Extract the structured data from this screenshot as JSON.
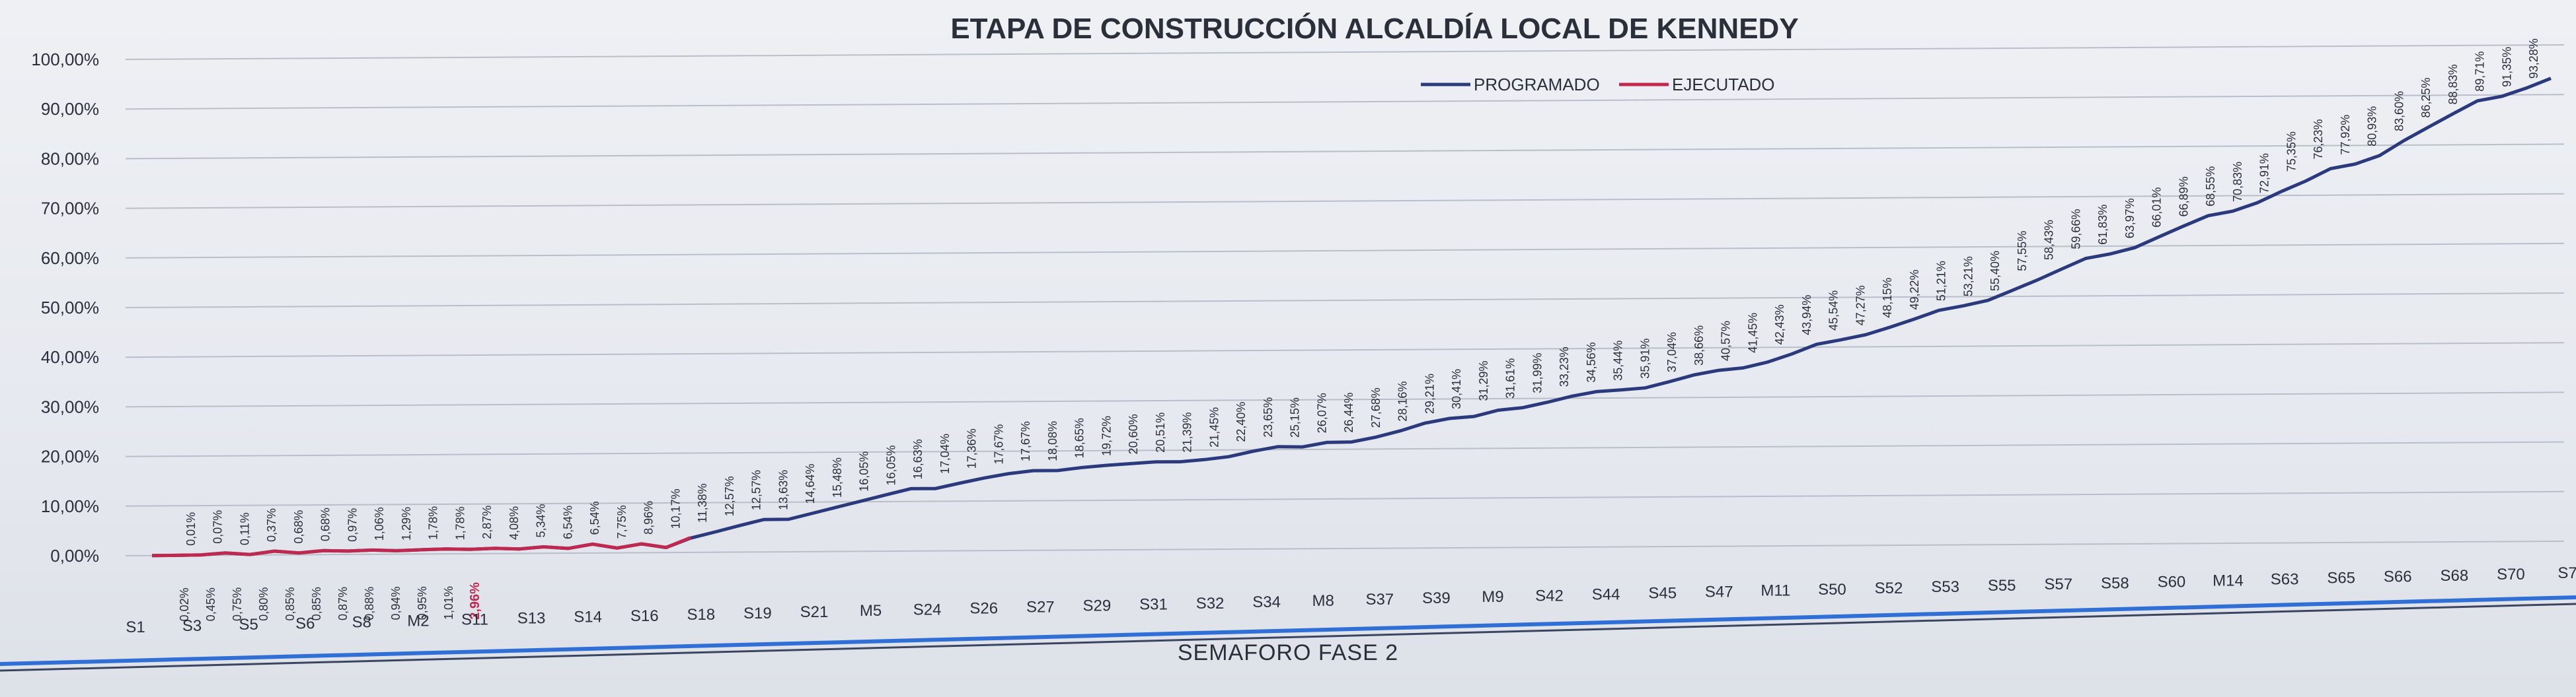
{
  "chart_data": {
    "type": "line",
    "title": "ETAPA DE CONSTRUCCIÓN ALCALDÍA LOCAL DE KENNEDY",
    "ylim": [
      0,
      100
    ],
    "y_ticks": [
      "0,00%",
      "10,00%",
      "20,00%",
      "30,00%",
      "40,00%",
      "50,00%",
      "60,00%",
      "70,00%",
      "80,00%",
      "90,00%",
      "100,00%"
    ],
    "grid": true,
    "legend_position": "top-center",
    "x_tick_labels": [
      "S1",
      "S3",
      "S5",
      "S6",
      "S8",
      "M2",
      "S11",
      "S13",
      "S14",
      "S16",
      "S18",
      "S19",
      "S21",
      "M5",
      "S24",
      "S26",
      "S27",
      "S29",
      "S31",
      "S32",
      "S34",
      "M8",
      "S37",
      "S39",
      "M9",
      "S42",
      "S44",
      "S45",
      "S47",
      "M11",
      "S50",
      "S52",
      "S53",
      "S55",
      "S57",
      "S58",
      "S60",
      "M14",
      "S63",
      "S65",
      "S66",
      "S68",
      "S70",
      "S7"
    ],
    "series": [
      {
        "name": "PROGRAMADO",
        "color": "#2a3a7c",
        "values": [
          0.01,
          0.02,
          0.07,
          0.45,
          0.11,
          0.75,
          0.37,
          0.8,
          0.68,
          0.85,
          0.68,
          0.85,
          0.97,
          0.87,
          1.06,
          0.88,
          1.29,
          0.94,
          1.78,
          0.95,
          1.78,
          1.01,
          2.87,
          4.08,
          5.34,
          6.54,
          6.54,
          7.75,
          8.96,
          10.17,
          11.38,
          12.57,
          12.57,
          13.63,
          14.64,
          15.48,
          16.05,
          16.05,
          16.63,
          17.04,
          17.36,
          17.67,
          17.67,
          18.08,
          18.65,
          19.72,
          20.6,
          20.51,
          21.39,
          21.45,
          22.4,
          23.65,
          25.15,
          26.07,
          26.44,
          27.68,
          28.16,
          29.21,
          30.41,
          31.29,
          31.61,
          31.99,
          33.23,
          34.56,
          35.44,
          35.91,
          37.04,
          38.66,
          40.57,
          41.45,
          42.43,
          43.94,
          45.54,
          47.27,
          48.15,
          49.22,
          51.21,
          53.21,
          55.4,
          57.55,
          58.43,
          59.66,
          61.83,
          63.97,
          66.01,
          66.89,
          68.55,
          70.83,
          72.91,
          75.35,
          76.23,
          77.92,
          80.93,
          83.6,
          86.25,
          88.83,
          89.71,
          91.35,
          93.28
        ]
      },
      {
        "name": "EJECUTADO",
        "color": "#c0294f",
        "values": [
          0.01,
          0.02,
          0.07,
          0.45,
          0.11,
          0.75,
          0.37,
          0.8,
          0.68,
          0.85,
          0.68,
          0.85,
          0.97,
          0.87,
          1.06,
          0.88,
          1.29,
          0.94,
          1.78,
          0.95,
          1.78,
          1.01,
          2.96
        ]
      }
    ],
    "top_labels": [
      "0,01%",
      "0,07%",
      "0,11%",
      "0,37%",
      "0,68%",
      "0,68%",
      "0,97%",
      "1,06%",
      "1,29%",
      "1,78%",
      "1,78%",
      "2,87%",
      "4,08%",
      "5,34%",
      "6,54%",
      "6,54%",
      "7,75%",
      "8,96%",
      "10,17%",
      "11,38%",
      "12,57%",
      "12,57%",
      "13,63%",
      "14,64%",
      "15,48%",
      "16,05%",
      "16,05%",
      "16,63%",
      "17,04%",
      "17,36%",
      "17,67%",
      "17,67%",
      "18,08%",
      "18,65%",
      "19,72%",
      "20,60%",
      "20,51%",
      "21,39%",
      "21,45%",
      "22,40%",
      "23,65%",
      "25,15%",
      "26,07%",
      "26,44%",
      "27,68%",
      "28,16%",
      "29,21%",
      "30,41%",
      "31,29%",
      "31,61%",
      "31,99%",
      "33,23%",
      "34,56%",
      "35,44%",
      "35,91%",
      "37,04%",
      "38,66%",
      "40,57%",
      "41,45%",
      "42,43%",
      "43,94%",
      "45,54%",
      "47,27%",
      "48,15%",
      "49,22%",
      "51,21%",
      "53,21%",
      "55,40%",
      "57,55%",
      "58,43%",
      "59,66%",
      "61,83%",
      "63,97%",
      "66,01%",
      "66,89%",
      "68,55%",
      "70,83%",
      "72,91%",
      "75,35%",
      "76,23%",
      "77,92%",
      "80,93%",
      "83,60%",
      "86,25%",
      "88,83%",
      "89,71%",
      "91,35%",
      "93,28%"
    ],
    "bottom_labels": [
      "0,02%",
      "0,45%",
      "0,75%",
      "0,80%",
      "0,85%",
      "0,85%",
      "0,87%",
      "0,88%",
      "0,94%",
      "0,95%",
      "1,01%",
      "2,96%"
    ]
  },
  "footer": {
    "label": "SEMAFORO FASE 2"
  }
}
